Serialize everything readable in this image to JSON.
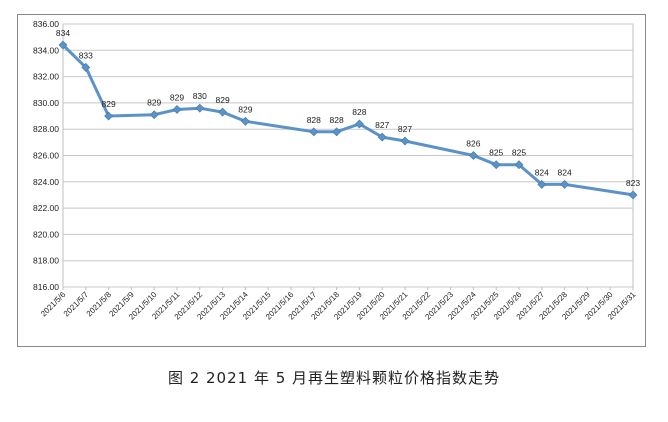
{
  "chart_data": {
    "type": "line",
    "title": "",
    "xlabel": "",
    "ylabel": "",
    "ylim": [
      816,
      836
    ],
    "yticks": [
      "816.00",
      "818.00",
      "820.00",
      "822.00",
      "824.00",
      "826.00",
      "828.00",
      "830.00",
      "832.00",
      "834.00",
      "836.00"
    ],
    "grid": true,
    "line_color": "#5b93c9",
    "categories": [
      "2021/5/6",
      "2021/5/7",
      "2021/5/8",
      "2021/5/9",
      "2021/5/10",
      "2021/5/11",
      "2021/5/12",
      "2021/5/13",
      "2021/5/14",
      "2021/5/15",
      "2021/5/16",
      "2021/5/17",
      "2021/5/18",
      "2021/5/19",
      "2021/5/20",
      "2021/5/21",
      "2021/5/22",
      "2021/5/23",
      "2021/5/24",
      "2021/5/25",
      "2021/5/26",
      "2021/5/27",
      "2021/5/28",
      "2021/5/29",
      "2021/5/30",
      "2021/5/31"
    ],
    "points": [
      {
        "x": "2021/5/6",
        "y": 834.4,
        "label": "834"
      },
      {
        "x": "2021/5/7",
        "y": 832.7,
        "label": "833"
      },
      {
        "x": "2021/5/8",
        "y": 829.0,
        "label": "829"
      },
      {
        "x": "2021/5/10",
        "y": 829.1,
        "label": "829"
      },
      {
        "x": "2021/5/11",
        "y": 829.5,
        "label": "829"
      },
      {
        "x": "2021/5/12",
        "y": 829.6,
        "label": "830"
      },
      {
        "x": "2021/5/13",
        "y": 829.3,
        "label": "829"
      },
      {
        "x": "2021/5/14",
        "y": 828.6,
        "label": "829"
      },
      {
        "x": "2021/5/17",
        "y": 827.8,
        "label": "828"
      },
      {
        "x": "2021/5/18",
        "y": 827.8,
        "label": "828"
      },
      {
        "x": "2021/5/19",
        "y": 828.4,
        "label": "828"
      },
      {
        "x": "2021/5/20",
        "y": 827.4,
        "label": "827"
      },
      {
        "x": "2021/5/21",
        "y": 827.1,
        "label": "827"
      },
      {
        "x": "2021/5/24",
        "y": 826.0,
        "label": "826"
      },
      {
        "x": "2021/5/25",
        "y": 825.3,
        "label": "825"
      },
      {
        "x": "2021/5/26",
        "y": 825.3,
        "label": "825"
      },
      {
        "x": "2021/5/27",
        "y": 823.8,
        "label": "824"
      },
      {
        "x": "2021/5/28",
        "y": 823.8,
        "label": "824"
      },
      {
        "x": "2021/5/31",
        "y": 823.0,
        "label": "823"
      }
    ]
  },
  "caption": "图 2  2021 年 5 月再生塑料颗粒价格指数走势"
}
